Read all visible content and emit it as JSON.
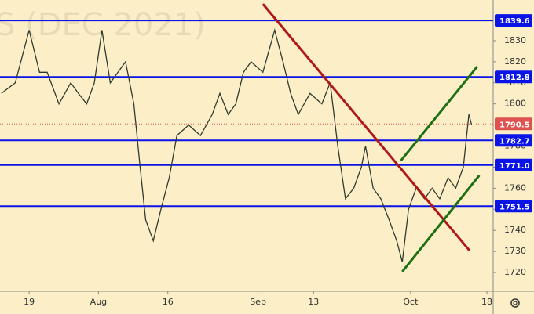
{
  "chart_data": {
    "type": "line",
    "watermark": "S (DEC 2021)",
    "background": "#fcefc7",
    "color": "#2f3a2f",
    "x": [
      -4,
      -2,
      0,
      1.5,
      2.6,
      4.3,
      6,
      7.1,
      8.3,
      9.4,
      10.5,
      11.7,
      12.8,
      13.9,
      15.1,
      16,
      16.8,
      17.9,
      19,
      20.2,
      21.3,
      23,
      24.7,
      26.4,
      27.5,
      28.7,
      29.8,
      30.9,
      32,
      33.7,
      35.4,
      36.6,
      37.7,
      38.8,
      40.5,
      42.2,
      43.4,
      44.5,
      45.6,
      46.8,
      47.9,
      48.5,
      49.6,
      50.7,
      51.9,
      53,
      53.8,
      54.7,
      55.8,
      57,
      58.1,
      59.2,
      60.4,
      61.5,
      62.6,
      63.4,
      63.8
    ],
    "values": [
      1805,
      1810,
      1835,
      1815,
      1815,
      1800,
      1810,
      1805,
      1800,
      1810,
      1835,
      1810,
      1815,
      1820,
      1800,
      1770,
      1745,
      1735,
      1750,
      1765,
      1785,
      1790,
      1785,
      1795,
      1805,
      1795,
      1800,
      1815,
      1820,
      1815,
      1835,
      1820,
      1805,
      1795,
      1805,
      1800,
      1810,
      1780,
      1755,
      1760,
      1770,
      1780,
      1760,
      1755,
      1745,
      1735,
      1725,
      1750,
      1760,
      1755,
      1760,
      1755,
      1765,
      1760,
      1770,
      1795,
      1790
    ],
    "xlim": [
      -4.2,
      66.9
    ],
    "ylim": [
      1711.1,
      1849.3
    ],
    "xticks": [
      {
        "value": 0,
        "label": "19"
      },
      {
        "value": 10,
        "label": "Aug"
      },
      {
        "value": 20,
        "label": "16"
      },
      {
        "value": 33,
        "label": "Sep"
      },
      {
        "value": 41,
        "label": "13"
      },
      {
        "value": 55,
        "label": "Oct"
      },
      {
        "value": 66,
        "label": "18"
      }
    ],
    "yticks": [
      1720,
      1730,
      1740,
      1750,
      1760,
      1770,
      1780,
      1790,
      1800,
      1810,
      1820,
      1830
    ],
    "levels": [
      {
        "value": 1839.6,
        "label": "1839.6",
        "color": "#0a14e6",
        "style": "solid"
      },
      {
        "value": 1812.8,
        "label": "1812.8",
        "color": "#0a14e6",
        "style": "solid"
      },
      {
        "value": 1790.5,
        "label": "1790.5",
        "color": "#e0524f",
        "style": "dotted"
      },
      {
        "value": 1782.7,
        "label": "1782.7",
        "color": "#0a14e6",
        "style": "solid"
      },
      {
        "value": 1771.0,
        "label": "1771.0",
        "color": "#0a14e6",
        "style": "solid"
      },
      {
        "value": 1751.5,
        "label": "1751.5",
        "color": "#0a14e6",
        "style": "solid"
      }
    ],
    "trendlines": [
      {
        "x": [
          33.7,
          63.5
        ],
        "values": [
          1847.4,
          1730.4
        ],
        "color": "#b01818"
      },
      {
        "x": [
          53.6,
          64.6
        ],
        "values": [
          1773.1,
          1817.7
        ],
        "color": "#1e6e12"
      },
      {
        "x": [
          53.8,
          64.9
        ],
        "values": [
          1720.4,
          1766.1
        ],
        "color": "#1e6e12"
      }
    ]
  }
}
